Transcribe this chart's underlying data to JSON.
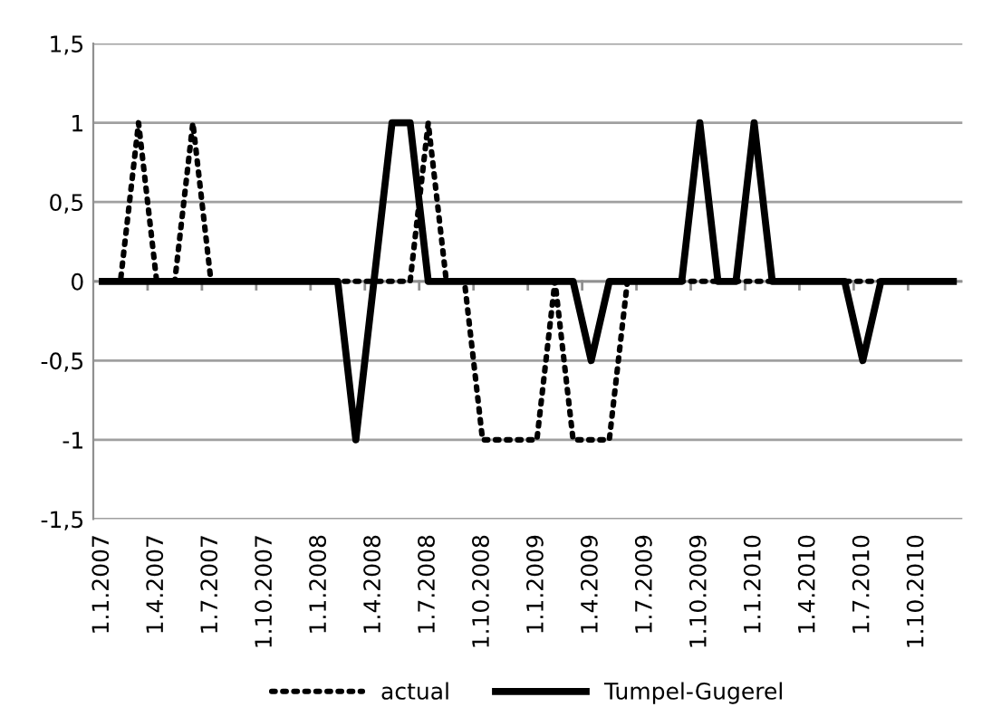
{
  "chart_data": {
    "type": "line",
    "categories": [
      "1.1.2007",
      null,
      null,
      "1.4.2007",
      null,
      null,
      "1.7.2007",
      null,
      null,
      "1.10.2007",
      null,
      null,
      "1.1.2008",
      null,
      null,
      "1.4.2008",
      null,
      null,
      "1.7.2008",
      null,
      null,
      "1.10.2008",
      null,
      null,
      "1.1.2009",
      null,
      null,
      "1.4.2009",
      null,
      null,
      "1.7.2009",
      null,
      null,
      "1.10.2009",
      null,
      null,
      "1.1.2010",
      null,
      null,
      "1.4.2010",
      null,
      null,
      "1.7.2010",
      null,
      null,
      "1.10.2010",
      null,
      null
    ],
    "series": [
      {
        "name": "actual",
        "color": "#000000",
        "line_style": "dotted",
        "values": [
          0,
          0,
          1,
          0,
          0,
          1,
          0,
          0,
          0,
          0,
          0,
          0,
          0,
          0,
          0,
          0,
          0,
          0,
          1,
          0,
          0,
          -1,
          -1,
          -1,
          -1,
          0,
          -1,
          -1,
          -1,
          0,
          0,
          0,
          0,
          0,
          0,
          0,
          0,
          0,
          0,
          0,
          0,
          0,
          0,
          0,
          0,
          0,
          0,
          0
        ]
      },
      {
        "name": "Tumpel-Gugerel",
        "color": "#000000",
        "line_style": "solid",
        "values": [
          0,
          0,
          0,
          0,
          0,
          0,
          0,
          0,
          0,
          0,
          0,
          0,
          0,
          0,
          -1,
          0,
          1,
          1,
          0,
          0,
          0,
          0,
          0,
          0,
          0,
          0,
          0,
          -0.5,
          0,
          0,
          0,
          0,
          0,
          1,
          0,
          0,
          1,
          0,
          0,
          0,
          0,
          0,
          -0.5,
          0,
          0,
          0,
          0,
          0
        ]
      }
    ],
    "ylim": [
      -1.5,
      1.5
    ],
    "yticks": [
      {
        "value": -1.5,
        "label": "-1,5"
      },
      -1,
      {
        "value": -0.5,
        "label": "-0,5"
      },
      0,
      {
        "value": 0.5,
        "label": "0,5"
      },
      1,
      {
        "value": 1.5,
        "label": "1,5"
      }
    ],
    "grid": "y",
    "legend": "bottom",
    "marker": "none"
  }
}
